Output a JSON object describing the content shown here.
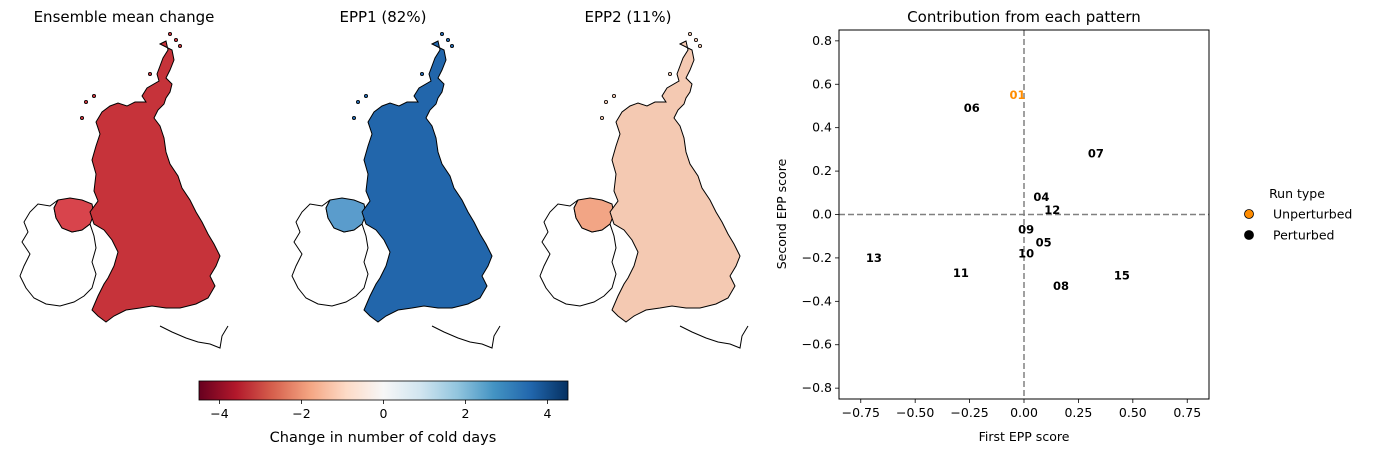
{
  "maps": [
    {
      "title": "Ensemble mean change",
      "fill": "#c6333a",
      "fill_ni": "#d8444c",
      "coast": "#000000"
    },
    {
      "title": "EPP1 (82%)",
      "fill": "#2266ab",
      "fill_ni": "#5a9ccc",
      "coast": "#000000"
    },
    {
      "title": "EPP2 (11%)",
      "fill": "#f4c9b2",
      "fill_ni": "#f2a585",
      "coast": "#000000"
    }
  ],
  "colorbar": {
    "label": "Change in number of cold days",
    "ticks": [
      "−4",
      "−2",
      "0",
      "2",
      "4"
    ],
    "tick_values": [
      -4,
      -2,
      0,
      2,
      4
    ],
    "range": [
      -4.5,
      4.5
    ],
    "colors": [
      "#67001f",
      "#b2182b",
      "#d6604d",
      "#f4a582",
      "#fddbc7",
      "#f7f7f7",
      "#d1e5f0",
      "#92c5de",
      "#4393c3",
      "#2166ac",
      "#053061"
    ]
  },
  "chart_data": {
    "type": "scatter",
    "title": "Contribution from each pattern",
    "xlabel": "First EPP score",
    "ylabel": "Second EPP score",
    "xlim": [
      -0.85,
      0.85
    ],
    "ylim": [
      -0.85,
      0.85
    ],
    "xticks": [
      -0.75,
      -0.5,
      -0.25,
      0,
      0.25,
      0.5,
      0.75
    ],
    "xtick_labels": [
      "−0.75",
      "−0.50",
      "−0.25",
      "0.00",
      "0.25",
      "0.50",
      "0.75"
    ],
    "yticks": [
      -0.8,
      -0.6,
      -0.4,
      -0.2,
      0,
      0.2,
      0.4,
      0.6,
      0.8
    ],
    "ytick_labels": [
      "−0.8",
      "−0.6",
      "−0.4",
      "−0.2",
      "0.0",
      "0.2",
      "0.4",
      "0.6",
      "0.8"
    ],
    "grid": false,
    "reference_lines": {
      "x": 0,
      "y": 0
    },
    "points": [
      {
        "label": "01",
        "x": -0.03,
        "y": 0.55,
        "type": "Unperturbed"
      },
      {
        "label": "04",
        "x": 0.08,
        "y": 0.08,
        "type": "Perturbed"
      },
      {
        "label": "05",
        "x": 0.09,
        "y": -0.13,
        "type": "Perturbed"
      },
      {
        "label": "06",
        "x": -0.24,
        "y": 0.49,
        "type": "Perturbed"
      },
      {
        "label": "07",
        "x": 0.33,
        "y": 0.28,
        "type": "Perturbed"
      },
      {
        "label": "08",
        "x": 0.17,
        "y": -0.33,
        "type": "Perturbed"
      },
      {
        "label": "09",
        "x": 0.01,
        "y": -0.07,
        "type": "Perturbed"
      },
      {
        "label": "10",
        "x": 0.01,
        "y": -0.18,
        "type": "Perturbed"
      },
      {
        "label": "11",
        "x": -0.29,
        "y": -0.27,
        "type": "Perturbed"
      },
      {
        "label": "12",
        "x": 0.13,
        "y": 0.02,
        "type": "Perturbed"
      },
      {
        "label": "13",
        "x": -0.69,
        "y": -0.2,
        "type": "Perturbed"
      },
      {
        "label": "15",
        "x": 0.45,
        "y": -0.28,
        "type": "Perturbed"
      }
    ],
    "legend": {
      "title": "Run type",
      "placement": "right-outside",
      "entries": [
        {
          "label": "Unperturbed",
          "color": "#ff8c00"
        },
        {
          "label": "Perturbed",
          "color": "#000000"
        }
      ]
    },
    "colors": {
      "Unperturbed": "#ff8c00",
      "Perturbed": "#000000",
      "refline": "#808080"
    }
  }
}
